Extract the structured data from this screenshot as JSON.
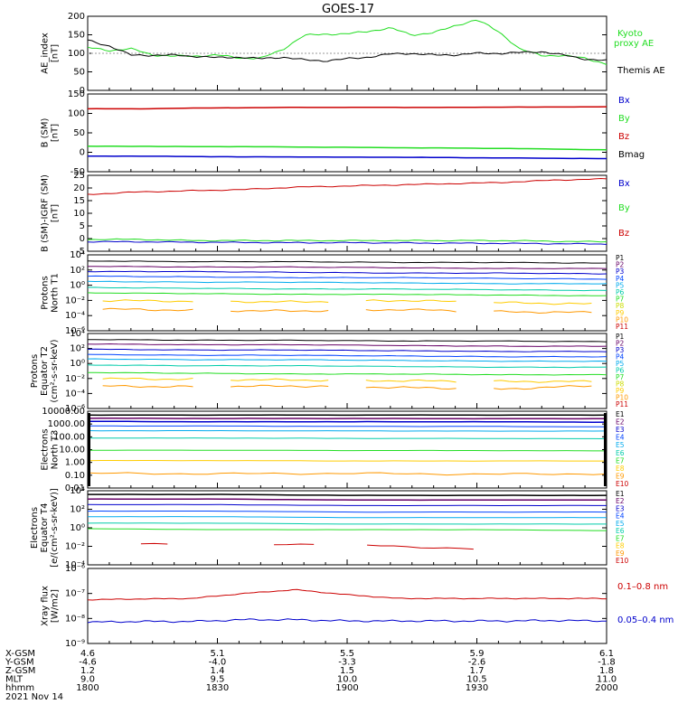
{
  "title": "GOES-17",
  "colors": {
    "black": "#000000",
    "green": "#22dd22",
    "red": "#cc0000",
    "blue": "#0000cc",
    "p_band": [
      "#000000",
      "#660066",
      "#0000cc",
      "#0044ff",
      "#00aaee",
      "#00ccaa",
      "#22dd22",
      "#ccdd00",
      "#ffcc00",
      "#ff9900",
      "#cc0000",
      "#aa0000"
    ],
    "e_band": [
      "#000000",
      "#660066",
      "#0000cc",
      "#0044ff",
      "#00aaee",
      "#00ccaa",
      "#22dd22",
      "#ffcc00",
      "#ff9900",
      "#cc0000",
      "#aa0000"
    ]
  },
  "panels": [
    {
      "id": "ae",
      "ylabel": [
        "AE_index",
        "[nT]"
      ],
      "ticks": [
        "200",
        "150",
        "100",
        "50",
        "0"
      ],
      "legend": [
        {
          "text": "Kyoto",
          "color": "#22dd22"
        },
        {
          "text": "proxy AE",
          "color": "#22dd22"
        },
        {
          "text": "Themis AE",
          "color": "#000000"
        }
      ]
    },
    {
      "id": "bsm",
      "ylabel": [
        "B (SM)",
        "[nT]"
      ],
      "ticks": [
        "150",
        "100",
        "50",
        "0",
        "-50"
      ],
      "legend": [
        {
          "text": "Bx",
          "color": "#0000cc"
        },
        {
          "text": "By",
          "color": "#22dd22"
        },
        {
          "text": "Bz",
          "color": "#cc0000"
        },
        {
          "text": "Bmag",
          "color": "#000000"
        }
      ]
    },
    {
      "id": "bigrf",
      "ylabel": [
        "B (SM)-IGRF (SM)",
        "[nT]"
      ],
      "ticks": [
        "25",
        "20",
        "15",
        "10",
        "5",
        "0",
        "-5"
      ],
      "legend": [
        {
          "text": "Bx",
          "color": "#0000cc"
        },
        {
          "text": "By",
          "color": "#22dd22"
        },
        {
          "text": "Bz",
          "color": "#cc0000"
        }
      ]
    },
    {
      "id": "pt1",
      "ylabel": [
        "Protons",
        "North T1"
      ],
      "ticks": [
        "10⁴",
        "10²",
        "10⁰",
        "10⁻²",
        "10⁻⁴",
        "10⁻⁶"
      ],
      "legend": [
        "P1",
        "P2",
        "P3",
        "P4",
        "P5",
        "P6",
        "P7",
        "P8",
        "P9",
        "P10",
        "P11"
      ]
    },
    {
      "id": "pt2",
      "ylabel": [
        "Protons",
        "Equator T2",
        "(cm²-s-sr-keV)"
      ],
      "ticks": [
        "10⁴",
        "10²",
        "10⁰",
        "10⁻²",
        "10⁻⁴",
        "10⁻⁶"
      ],
      "legend": [
        "P1",
        "P2",
        "P3",
        "P4",
        "P5",
        "P6",
        "P7",
        "P8",
        "P9",
        "P10",
        "P11"
      ]
    },
    {
      "id": "et3",
      "ylabel": [
        "Electrons",
        "North T3"
      ],
      "ticks": [
        "10000.00",
        "1000.00",
        "100.00",
        "10.00",
        "1.00",
        "0.10",
        "0.01"
      ],
      "legend": [
        "E1",
        "E2",
        "E3",
        "E4",
        "E5",
        "E6",
        "E7",
        "E8",
        "E9",
        "E10"
      ]
    },
    {
      "id": "et4",
      "ylabel": [
        "Electrons",
        "Equator T4",
        "[e/(cm²-s-sr-keV)]"
      ],
      "ticks": [
        "10⁴",
        "10²",
        "10⁰",
        "10⁻²",
        "10⁻⁴"
      ],
      "legend": [
        "E1",
        "E2",
        "E3",
        "E4",
        "E5",
        "E6",
        "E7",
        "E8",
        "E9",
        "E10"
      ]
    },
    {
      "id": "xray",
      "ylabel": [
        "Xray flux",
        "[W/m2]"
      ],
      "ticks": [
        "10⁻⁶",
        "10⁻⁷",
        "10⁻⁸",
        "10⁻⁹"
      ],
      "legend": [
        {
          "text": "0.1–0.8 nm",
          "color": "#cc0000"
        },
        {
          "text": "0.05–0.4 nm",
          "color": "#0000cc"
        }
      ]
    }
  ],
  "ephemeris": {
    "labels": [
      "X-GSM",
      "Y-GSM",
      "Z-GSM",
      "MLT",
      "hhmm"
    ],
    "columns": [
      [
        "4.6",
        "-4.6",
        "1.2",
        "9.0",
        "1800"
      ],
      [
        "5.1",
        "-4.0",
        "1.4",
        "9.5",
        "1830"
      ],
      [
        "5.5",
        "-3.3",
        "1.5",
        "10.0",
        "1900"
      ],
      [
        "5.9",
        "-2.6",
        "1.7",
        "10.5",
        "1930"
      ],
      [
        "6.1",
        "-1.8",
        "1.8",
        "11.0",
        "2000"
      ]
    ],
    "date": "2021 Nov 14"
  },
  "chart_data": {
    "type": "line",
    "title": "GOES-17",
    "x_hhmm": [
      "1800",
      "1830",
      "1900",
      "1930",
      "2000"
    ],
    "ae": {
      "ylim": [
        0,
        200
      ],
      "series": [
        {
          "name": "Kyoto proxy AE",
          "x_min": [
            0,
            5,
            10,
            15,
            20,
            25,
            30,
            35,
            40,
            45,
            50,
            55,
            60,
            65,
            70,
            75,
            80,
            85,
            90,
            95,
            100,
            105,
            110,
            115,
            120
          ],
          "values": [
            115,
            108,
            112,
            96,
            92,
            93,
            95,
            88,
            86,
            110,
            148,
            152,
            152,
            160,
            168,
            150,
            155,
            175,
            190,
            160,
            110,
            95,
            93,
            88,
            70
          ]
        },
        {
          "name": "Themis AE",
          "x_min": [
            0,
            5,
            10,
            15,
            20,
            25,
            30,
            35,
            40,
            45,
            50,
            55,
            60,
            65,
            70,
            75,
            80,
            85,
            90,
            95,
            100,
            105,
            110,
            115,
            120
          ],
          "values": [
            135,
            120,
            95,
            95,
            95,
            92,
            88,
            90,
            85,
            90,
            82,
            80,
            85,
            90,
            98,
            100,
            95,
            96,
            100,
            100,
            102,
            105,
            95,
            85,
            80
          ]
        }
      ]
    },
    "b_sm": {
      "ylim": [
        -60,
        160
      ],
      "series": [
        {
          "name": "Bz",
          "values": [
            118,
            118,
            120,
            121,
            122,
            122,
            122,
            122,
            123,
            123,
            124
          ]
        },
        {
          "name": "By",
          "values": [
            12,
            12,
            11,
            11,
            10,
            9,
            8,
            7,
            6,
            4,
            2
          ]
        },
        {
          "name": "Bx",
          "values": [
            -16,
            -16,
            -17,
            -18,
            -18,
            -19,
            -19,
            -20,
            -21,
            -22,
            -23
          ]
        }
      ]
    },
    "b_igrf": {
      "ylim": [
        -6,
        26
      ],
      "series": [
        {
          "name": "Bz",
          "values": [
            18,
            19,
            19.5,
            20,
            21,
            21.5,
            22,
            22.5,
            23,
            24,
            24.5
          ]
        },
        {
          "name": "By",
          "values": [
            -1,
            -1,
            -1.5,
            -1.5,
            -1.5,
            -1.5,
            -1.5,
            -1.5,
            -1.5,
            -1.8,
            -2
          ]
        },
        {
          "name": "Bx",
          "values": [
            -2,
            -2,
            -2.2,
            -2.3,
            -2.4,
            -2.4,
            -2.5,
            -2.6,
            -2.7,
            -2.8,
            -3
          ]
        }
      ]
    },
    "protons_t1_log10": {
      "ylim": [
        -6,
        4
      ],
      "series": [
        {
          "name": "P1",
          "values": [
            3.2,
            3.1,
            3.1,
            3.0,
            3.0,
            2.9
          ]
        },
        {
          "name": "P2",
          "values": [
            2.5,
            2.4,
            2.4,
            2.3,
            2.2,
            2.2
          ]
        },
        {
          "name": "P3",
          "values": [
            1.8,
            1.8,
            1.7,
            1.6,
            1.6,
            1.5
          ]
        },
        {
          "name": "P4",
          "values": [
            1.2,
            1.1,
            1.0,
            1.0,
            0.9,
            0.8
          ]
        },
        {
          "name": "P5",
          "values": [
            0.5,
            0.4,
            0.4,
            0.3,
            0.2,
            0.2
          ]
        },
        {
          "name": "P6",
          "values": [
            -0.3,
            -0.4,
            -0.5,
            -0.5,
            -0.6,
            -0.7
          ]
        },
        {
          "name": "P7",
          "values": [
            -1.0,
            -1.1,
            -1.2,
            -1.2,
            -1.3,
            -1.4
          ]
        },
        {
          "name": "P8",
          "values": [
            -2.0,
            -2.1,
            -2.2,
            -2.0,
            -2.3,
            -2.5
          ]
        },
        {
          "name": "P9",
          "values": [
            -3.1,
            -3.3,
            -3.4,
            -3.2,
            -3.5,
            -3.6
          ]
        }
      ]
    },
    "protons_t2_log10": {
      "ylim": [
        -6,
        4
      ],
      "series": [
        {
          "name": "P1",
          "values": [
            3.2,
            3.1,
            3.1,
            3.0,
            3.0,
            2.9
          ]
        },
        {
          "name": "P2",
          "values": [
            2.6,
            2.5,
            2.5,
            2.4,
            2.3,
            2.3
          ]
        },
        {
          "name": "P3",
          "values": [
            1.9,
            1.8,
            1.8,
            1.7,
            1.6,
            1.6
          ]
        },
        {
          "name": "P4",
          "values": [
            1.2,
            1.1,
            1.1,
            1.0,
            0.9,
            0.9
          ]
        },
        {
          "name": "P5",
          "values": [
            0.6,
            0.5,
            0.5,
            0.4,
            0.3,
            0.3
          ]
        },
        {
          "name": "P6",
          "values": [
            -0.2,
            -0.3,
            -0.3,
            -0.4,
            -0.5,
            -0.5
          ]
        },
        {
          "name": "P7",
          "values": [
            -1.2,
            -1.3,
            -1.4,
            -1.4,
            -1.5,
            -1.5
          ]
        },
        {
          "name": "P8",
          "values": [
            -2.0,
            -2.1,
            -2.2,
            -2.3,
            -2.4,
            -2.4
          ]
        },
        {
          "name": "P9",
          "values": [
            -3.0,
            -3.1,
            -3.0,
            -3.2,
            -3.4,
            -2.9
          ]
        }
      ]
    },
    "electrons_t3": {
      "ylim": [
        0.01,
        10000
      ],
      "series": [
        {
          "name": "E1",
          "values": [
            5000,
            5000,
            5000,
            5000,
            5000
          ]
        },
        {
          "name": "E2",
          "values": [
            2800,
            2700,
            2700,
            2600,
            2600
          ]
        },
        {
          "name": "E3",
          "values": [
            1600,
            1500,
            1500,
            1500,
            1400
          ]
        },
        {
          "name": "E4",
          "values": [
            700,
            700,
            650,
            650,
            600
          ]
        },
        {
          "name": "E5",
          "values": [
            300,
            300,
            290,
            280,
            280
          ]
        },
        {
          "name": "E6",
          "values": [
            80,
            80,
            75,
            75,
            70
          ]
        },
        {
          "name": "E7",
          "values": [
            9,
            9,
            8.5,
            8.5,
            8
          ]
        },
        {
          "name": "E8",
          "values": [
            1.4,
            1.4,
            1.3,
            1.3,
            1.3
          ]
        },
        {
          "name": "E9",
          "values": [
            0.14,
            0.13,
            0.14,
            0.12,
            0.13
          ]
        }
      ]
    },
    "electrons_t4_log10": {
      "ylim": [
        -4,
        4
      ],
      "series": [
        {
          "name": "E1",
          "values": [
            3.6,
            3.6,
            3.5,
            3.5,
            3.5
          ]
        },
        {
          "name": "E2",
          "values": [
            3.1,
            3.1,
            3.0,
            3.0,
            3.0
          ]
        },
        {
          "name": "E3",
          "values": [
            2.5,
            2.5,
            2.4,
            2.4,
            2.4
          ]
        },
        {
          "name": "E4",
          "values": [
            1.8,
            1.8,
            1.7,
            1.7,
            1.7
          ]
        },
        {
          "name": "E5",
          "values": [
            1.2,
            1.2,
            1.1,
            1.1,
            1.1
          ]
        },
        {
          "name": "E6",
          "values": [
            0.5,
            0.5,
            0.4,
            0.4,
            0.4
          ]
        },
        {
          "name": "E7",
          "values": [
            -0.1,
            -0.2,
            -0.2,
            -0.2,
            -0.3
          ]
        },
        {
          "name": "E8",
          "values": [
            -1.7,
            -1.7,
            -1.8,
            -2.3,
            -1.9
          ]
        }
      ]
    },
    "xray_log10": {
      "ylim": [
        -9,
        -6
      ],
      "series": [
        {
          "name": "0.1-0.8 nm",
          "values": [
            -7.25,
            -7.22,
            -7.2,
            -7.0,
            -6.85,
            -7.05,
            -7.2,
            -7.2,
            -7.2,
            -7.2,
            -7.2
          ]
        },
        {
          "name": "0.05-0.4 nm",
          "values": [
            -8.15,
            -8.12,
            -8.12,
            -8.05,
            -8.05,
            -8.1,
            -8.1,
            -8.1,
            -8.1,
            -8.08,
            -8.1
          ]
        }
      ]
    }
  }
}
